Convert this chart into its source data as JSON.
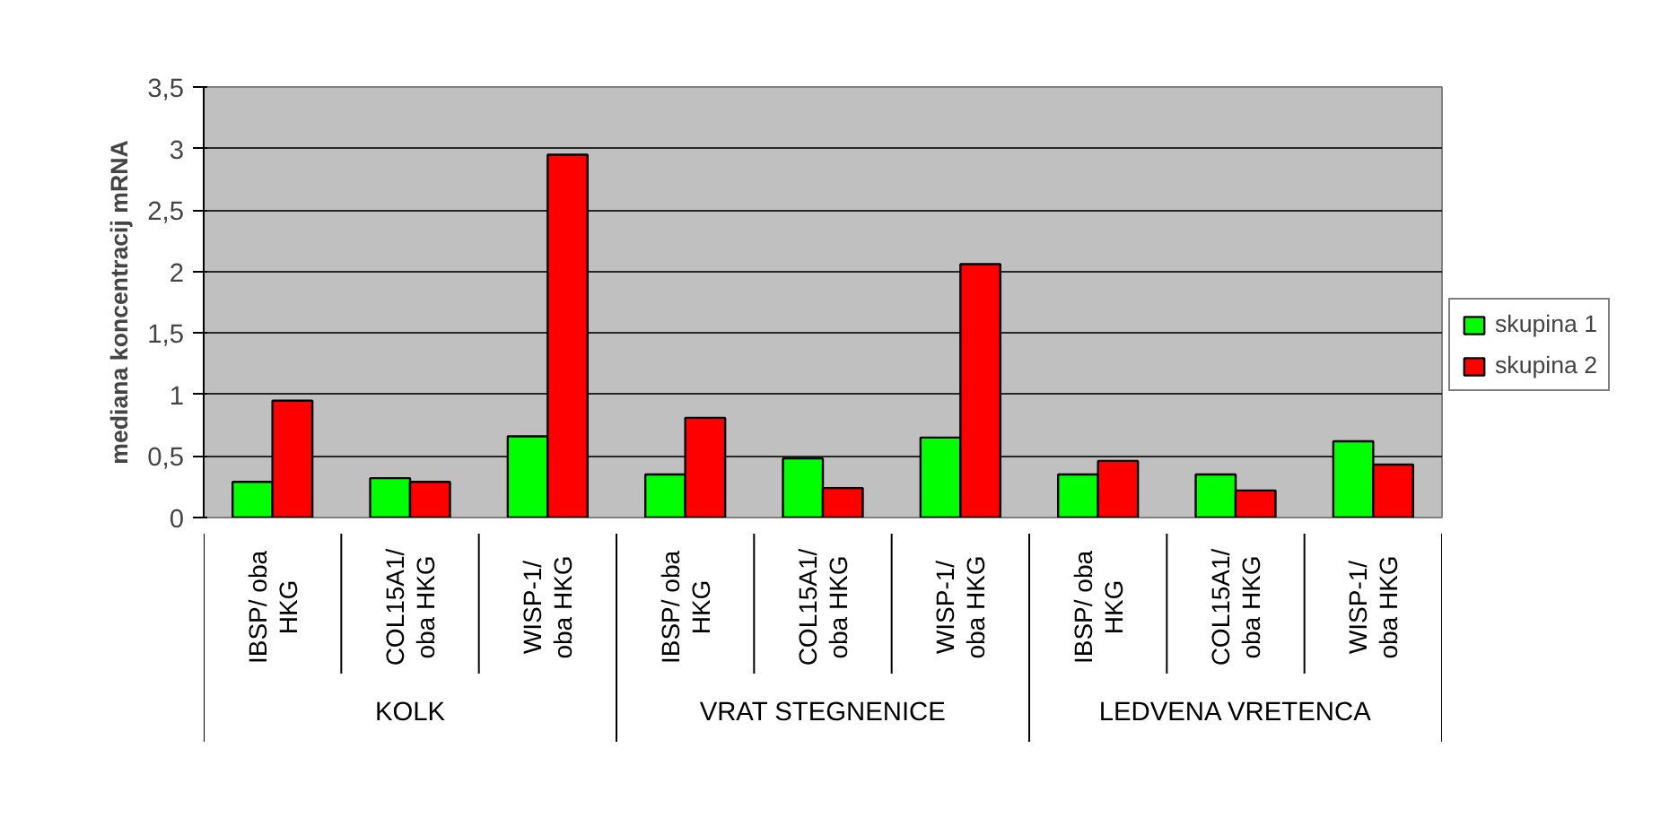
{
  "chart_data": {
    "type": "bar",
    "ylabel": "mediana koncentracij mRNA",
    "categories": [
      "IBSP/ oba\nHKG",
      "COL15A1/\noba HKG",
      "WISP-1/\noba HKG",
      "IBSP/ oba\nHKG",
      "COL15A1/\noba HKG",
      "WISP-1/\noba HKG",
      "IBSP/ oba\nHKG",
      "COL15A1/\noba HKG",
      "WISP-1/\noba HKG"
    ],
    "annotations": [
      "KOLK",
      "VRAT STEGNENICE",
      "LEDVENA VRETENCA"
    ],
    "series": [
      {
        "name": "skupina 1",
        "color": "#00ff00",
        "values": [
          0.29,
          0.32,
          0.66,
          0.35,
          0.48,
          0.65,
          0.35,
          0.35,
          0.62
        ]
      },
      {
        "name": "skupina 2",
        "color": "#ff0000",
        "values": [
          0.95,
          0.29,
          2.95,
          0.81,
          0.24,
          2.06,
          0.46,
          0.22,
          0.43
        ]
      }
    ],
    "ylim": [
      0,
      3.5
    ],
    "yticks": [
      0,
      {
        "value": 0.5,
        "label": "0,5"
      },
      1,
      {
        "value": 1.5,
        "label": "1,5"
      },
      2,
      {
        "value": 2.5,
        "label": "2,5"
      },
      3,
      {
        "value": 3.5,
        "label": "3,5"
      }
    ],
    "grid": "y",
    "legend": "right"
  }
}
